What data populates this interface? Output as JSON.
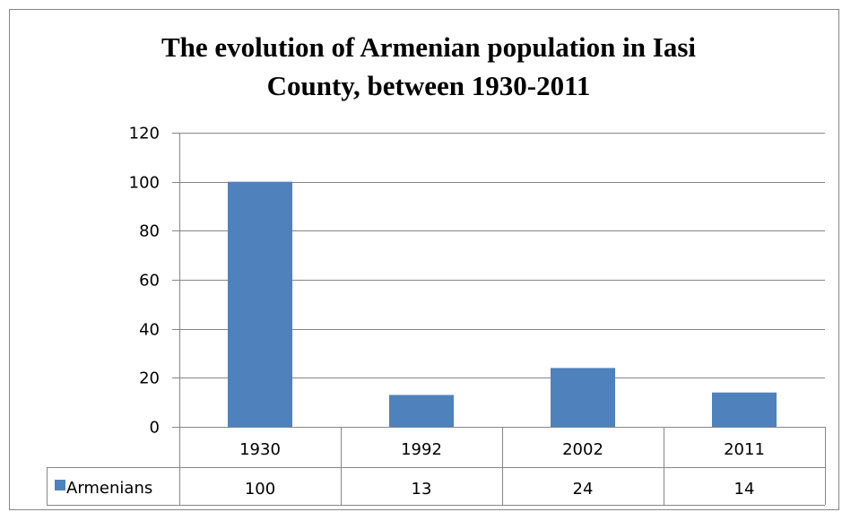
{
  "chart_data": {
    "type": "bar",
    "title_lines": [
      "The evolution of Armenian population in Iasi",
      "County, between 1930-2011"
    ],
    "categories": [
      "1930",
      "1992",
      "2002",
      "2011"
    ],
    "series": [
      {
        "name": "Armenians",
        "values": [
          100,
          13,
          24,
          14
        ],
        "color": "#4f81bd"
      }
    ],
    "yticks": [
      "0",
      "20",
      "40",
      "60",
      "80",
      "100",
      "120"
    ],
    "ylim": [
      0,
      120
    ],
    "grid": true,
    "legend_placement": "data-table-left"
  },
  "colors": {
    "bar": "#4f81bd",
    "gridline": "#868686",
    "border": "#868686"
  }
}
